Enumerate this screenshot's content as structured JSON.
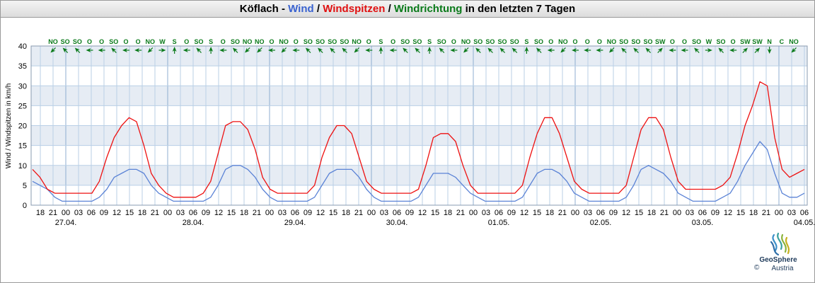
{
  "title": {
    "station": "Köflach",
    "sep1": " - ",
    "wind": "Wind",
    "sep2": " / ",
    "gusts": "Windspitzen",
    "sep3": " / ",
    "direction": "Windrichtung",
    "suffix": " in den letzten 7 Tagen"
  },
  "colors": {
    "wind": "#5b83d6",
    "gusts": "#ee1111",
    "direction": "#0a7a1a",
    "band": "#e6ecf4",
    "grid": "#b9cfe6"
  },
  "logo": {
    "name": "GeoSphere",
    "sub": "Austria",
    "copyright": "©"
  },
  "chart_data": {
    "type": "line",
    "ylabel": "Wind / Windspitzen in km/h",
    "ylim": [
      0,
      40
    ],
    "yticks": [
      0,
      5,
      10,
      15,
      20,
      25,
      30,
      35,
      40
    ],
    "x_hour_ticks": [
      "18",
      "21",
      "00",
      "03",
      "06",
      "09",
      "12",
      "15",
      "18",
      "21",
      "00",
      "03",
      "06",
      "09",
      "12",
      "15",
      "18",
      "21",
      "00",
      "03",
      "06",
      "09",
      "12",
      "15",
      "18",
      "21",
      "00",
      "03",
      "06",
      "09",
      "12",
      "15",
      "18",
      "21",
      "00",
      "03",
      "06",
      "09",
      "12",
      "15",
      "18",
      "21",
      "00",
      "03",
      "06",
      "09",
      "12",
      "15",
      "18",
      "21",
      "00",
      "03",
      "06",
      "09",
      "12",
      "15",
      "18",
      "21",
      "00",
      "03",
      "06"
    ],
    "x_date_ticks": [
      "27.04.",
      "28.04.",
      "29.04.",
      "30.04.",
      "01.05.",
      "02.05.",
      "03.05.",
      "04.05."
    ],
    "directions": [
      "NO",
      "SO",
      "SO",
      "O",
      "O",
      "SO",
      "O",
      "O",
      "NO",
      "W",
      "S",
      "O",
      "SO",
      "S",
      "O",
      "SO",
      "NO",
      "NO",
      "O",
      "NO",
      "O",
      "SO",
      "SO",
      "SO",
      "SO",
      "NO",
      "O",
      "S",
      "O",
      "SO",
      "SO",
      "S",
      "SO",
      "O",
      "NO",
      "SO",
      "SO",
      "SO",
      "SO",
      "S",
      "SO",
      "O",
      "NO",
      "O",
      "O",
      "O",
      "NO",
      "SO",
      "SO",
      "SO",
      "SW",
      "O",
      "O",
      "SO",
      "W",
      "SO",
      "O",
      "SW",
      "SW",
      "N",
      "C",
      "NO"
    ],
    "series": [
      {
        "name": "Wind",
        "values": [
          6,
          5,
          4,
          2,
          1,
          1,
          1,
          1,
          1,
          2,
          4,
          7,
          8,
          9,
          9,
          8,
          5,
          3,
          2,
          1,
          1,
          1,
          1,
          1,
          2,
          5,
          9,
          10,
          10,
          9,
          7,
          4,
          2,
          1,
          1,
          1,
          1,
          1,
          2,
          5,
          8,
          9,
          9,
          9,
          7,
          4,
          2,
          1,
          1,
          1,
          1,
          1,
          2,
          5,
          8,
          8,
          8,
          7,
          5,
          3,
          2,
          1,
          1,
          1,
          1,
          1,
          2,
          5,
          8,
          9,
          9,
          8,
          6,
          3,
          2,
          1,
          1,
          1,
          1,
          1,
          2,
          5,
          9,
          10,
          9,
          8,
          6,
          3,
          2,
          1,
          1,
          1,
          1,
          2,
          3,
          6,
          10,
          13,
          16,
          14,
          8,
          3,
          2,
          2,
          3
        ]
      },
      {
        "name": "Windspitzen",
        "values": [
          9,
          7,
          4,
          3,
          3,
          3,
          3,
          3,
          3,
          6,
          12,
          17,
          20,
          22,
          21,
          15,
          8,
          5,
          3,
          2,
          2,
          2,
          2,
          3,
          6,
          13,
          20,
          21,
          21,
          19,
          14,
          7,
          4,
          3,
          3,
          3,
          3,
          3,
          5,
          12,
          17,
          20,
          20,
          18,
          12,
          6,
          4,
          3,
          3,
          3,
          3,
          3,
          4,
          10,
          17,
          18,
          18,
          16,
          10,
          5,
          3,
          3,
          3,
          3,
          3,
          3,
          5,
          12,
          18,
          22,
          22,
          18,
          12,
          6,
          4,
          3,
          3,
          3,
          3,
          3,
          5,
          12,
          19,
          22,
          22,
          19,
          12,
          6,
          4,
          4,
          4,
          4,
          4,
          5,
          7,
          13,
          20,
          25,
          31,
          30,
          17,
          9,
          7,
          8,
          9
        ]
      }
    ]
  }
}
